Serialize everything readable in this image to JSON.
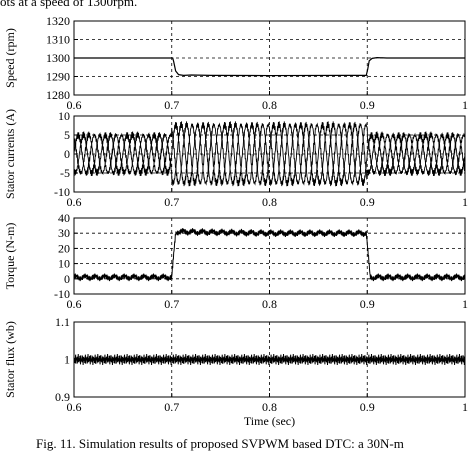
{
  "caption_top": "ots at a speed of 1300rpm.",
  "caption_bottom": "Fig. 11. Simulation results of proposed SVPWM based DTC: a 30N-m",
  "chart_data": [
    {
      "type": "line",
      "ylabel": "Speed (rpm)",
      "xlim": [
        0.6,
        1.0
      ],
      "ylim": [
        1280,
        1320
      ],
      "xticks": [
        "0.6",
        "0.7",
        "0.8",
        "0.9",
        "1"
      ],
      "yticks": [
        "1280",
        "1290",
        "1300",
        "1310",
        "1320"
      ],
      "grid": true,
      "series": [
        {
          "x": [
            0.6,
            0.701,
            0.702,
            0.704,
            0.707,
            0.712,
            0.72,
            0.74,
            0.8,
            0.88,
            0.899,
            0.9005,
            0.902,
            0.905,
            0.91,
            0.92,
            1.0
          ],
          "y": [
            1300,
            1300,
            1298,
            1293,
            1291,
            1290.6,
            1290.8,
            1290.6,
            1290.5,
            1290.6,
            1290.6,
            1294,
            1298.5,
            1299.8,
            1300.2,
            1300,
            1300
          ]
        }
      ]
    },
    {
      "type": "line",
      "ylabel": "Stator currents (A)",
      "xlim": [
        0.6,
        1.0
      ],
      "ylim": [
        -10,
        10
      ],
      "xticks": [
        "0.6",
        "0.7",
        "0.8",
        "0.9",
        "1"
      ],
      "yticks": [
        "-10",
        "-5",
        "0",
        "5",
        "10"
      ],
      "grid": true,
      "amplitude_segments": [
        {
          "x_start": 0.6,
          "x_end": 0.7,
          "amplitude": 5
        },
        {
          "x_start": 0.7,
          "x_end": 0.9,
          "amplitude": 7.7
        },
        {
          "x_start": 0.9,
          "x_end": 1.0,
          "amplitude": 5
        }
      ],
      "phases": 3
    },
    {
      "type": "line",
      "ylabel": "Torque (N-m)",
      "xlim": [
        0.6,
        1.0
      ],
      "ylim": [
        -10,
        40
      ],
      "xticks": [
        "0.6",
        "0.7",
        "0.8",
        "0.9",
        "1"
      ],
      "yticks": [
        "-10",
        "0",
        "10",
        "20",
        "30",
        "40"
      ],
      "grid": true,
      "series": [
        {
          "x": [
            0.6,
            0.7,
            0.704,
            0.706,
            0.8,
            0.899,
            0.903,
            0.905,
            1.0
          ],
          "y": [
            1,
            1,
            30,
            31,
            30,
            30,
            1,
            1,
            1
          ]
        }
      ]
    },
    {
      "type": "line",
      "ylabel": "Stator flux (wb)",
      "xlabel": "Time (sec)",
      "xlim": [
        0.6,
        1.0
      ],
      "ylim": [
        0.9,
        1.1
      ],
      "xticks": [
        "0.6",
        "0.7",
        "0.8",
        "0.9",
        "1"
      ],
      "yticks": [
        "0.9",
        "1",
        "1.1"
      ],
      "grid": true,
      "series": [
        {
          "x": [
            0.6,
            1.0
          ],
          "y": [
            1.0,
            1.0
          ]
        }
      ]
    }
  ]
}
